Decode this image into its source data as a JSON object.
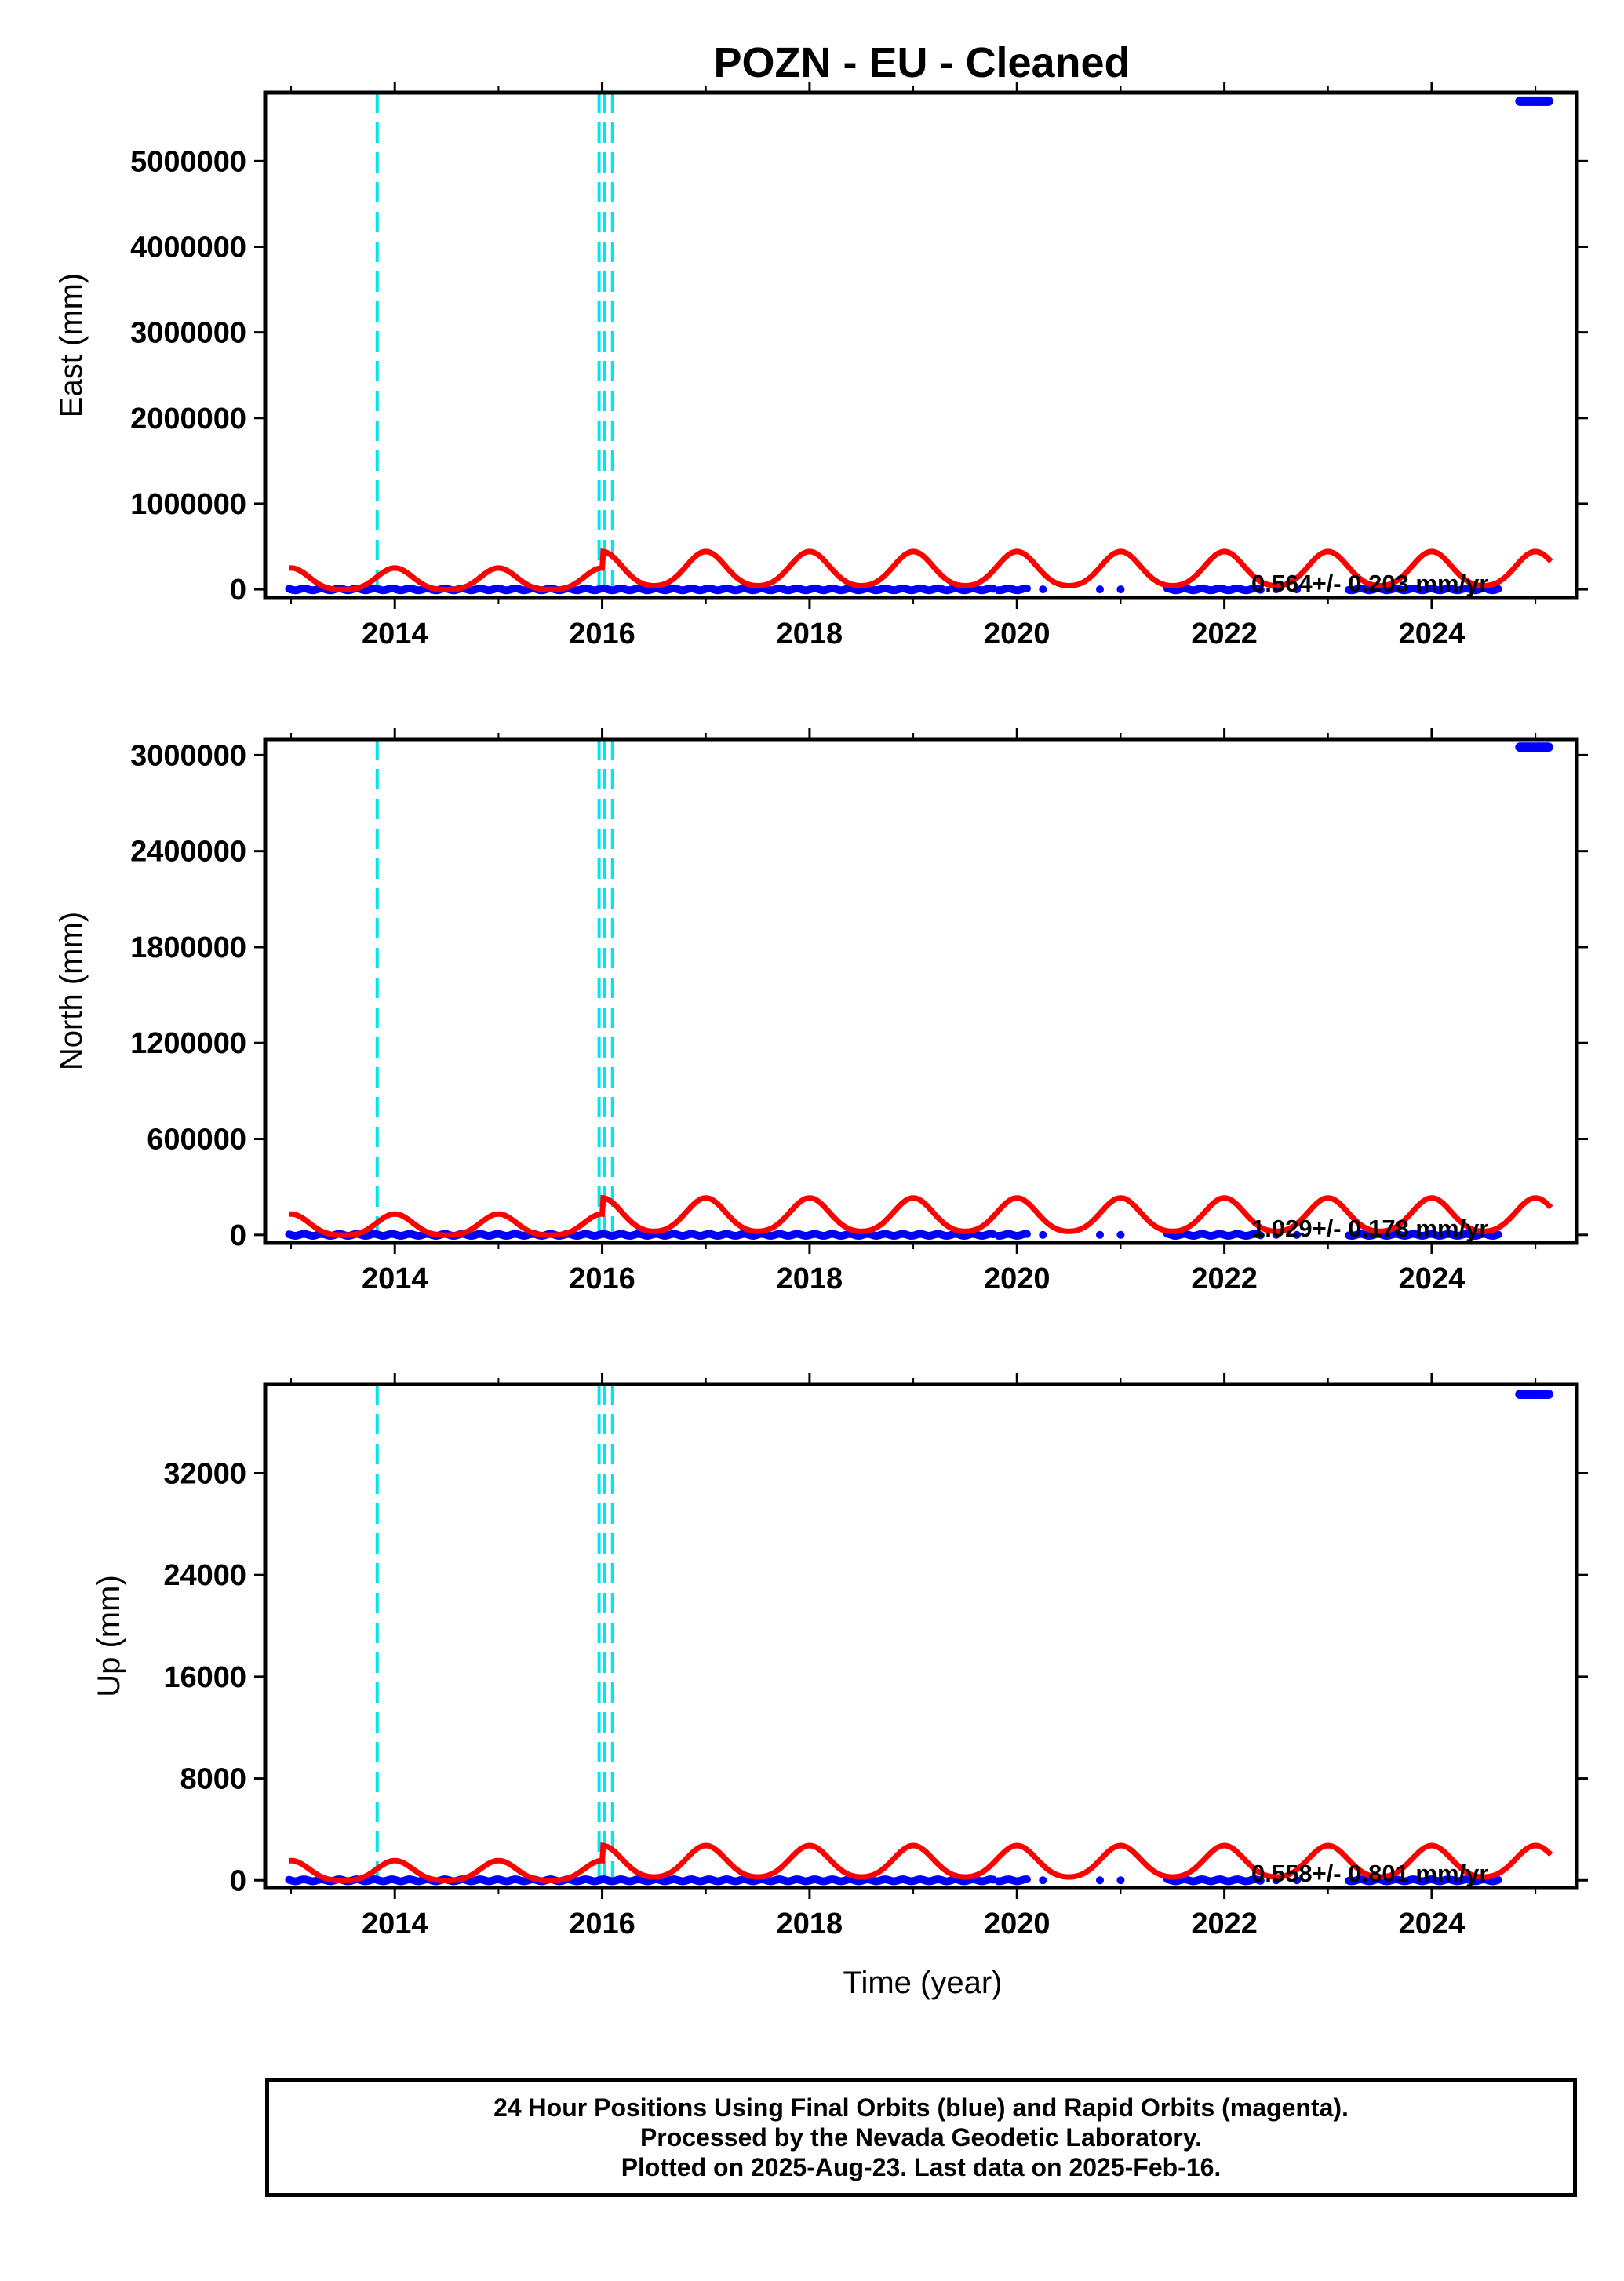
{
  "chart_data": {
    "type": "scatter",
    "title": "POZN  - EU - Cleaned",
    "xlabel": "Time (year)",
    "x_ticks": [
      2014,
      2016,
      2018,
      2020,
      2022,
      2024
    ],
    "xlim": [
      2012.75,
      2025.4
    ],
    "steps": [
      2013.83,
      2015.97,
      2016.02,
      2016.1
    ],
    "steps_color": "#00e5ee",
    "data_color": "#0000ff",
    "model_color": "#ff0000",
    "panels": [
      {
        "ylabel": "East (mm)",
        "ylim": [
          -100000,
          5800000
        ],
        "y_ticks": [
          0,
          1000000,
          2000000,
          3000000,
          4000000,
          5000000
        ],
        "y_tick_labels": [
          "0",
          "1000000",
          "2000000",
          "3000000",
          "4000000",
          "5000000"
        ],
        "rate_text": "0.564+/- 0.203 mm/yr",
        "baseline": 0,
        "outlier_value": 5700000,
        "outlier_range": [
          2024.85,
          2025.13
        ],
        "model_amplitude": 420000
      },
      {
        "ylabel": "North (mm)",
        "ylim": [
          -50000,
          3100000
        ],
        "y_ticks": [
          0,
          600000,
          1200000,
          1800000,
          2400000,
          3000000
        ],
        "y_tick_labels": [
          "0",
          "600000",
          "1200000",
          "1800000",
          "2400000",
          "3000000"
        ],
        "rate_text": "1.029+/- 0.178 mm/yr",
        "baseline": 0,
        "outlier_value": 3050000,
        "outlier_range": [
          2024.85,
          2025.13
        ],
        "model_amplitude": 220000
      },
      {
        "ylabel": "Up (mm)",
        "ylim": [
          -600,
          39000
        ],
        "y_ticks": [
          0,
          8000,
          16000,
          24000,
          32000
        ],
        "y_tick_labels": [
          "0",
          "8000",
          "16000",
          "24000",
          "32000"
        ],
        "rate_text": "0.558+/- 0.801 mm/yr",
        "baseline": 0,
        "outlier_value": 38200,
        "outlier_range": [
          2024.85,
          2025.13
        ],
        "model_amplitude": 2600
      }
    ],
    "data_segments": [
      [
        2012.98,
        2019.78
      ],
      [
        2019.82,
        2020.1
      ],
      [
        2021.45,
        2022.35
      ],
      [
        2023.2,
        2024.65
      ]
    ],
    "sparse_points": [
      2020.25,
      2020.8,
      2021.0,
      2022.5,
      2022.7
    ]
  },
  "footer": {
    "line1": "24 Hour Positions Using Final Orbits (blue) and Rapid Orbits (magenta).",
    "line2": "Processed by the Nevada Geodetic Laboratory.",
    "line3": "Plotted on 2025-Aug-23. Last data on 2025-Feb-16."
  }
}
